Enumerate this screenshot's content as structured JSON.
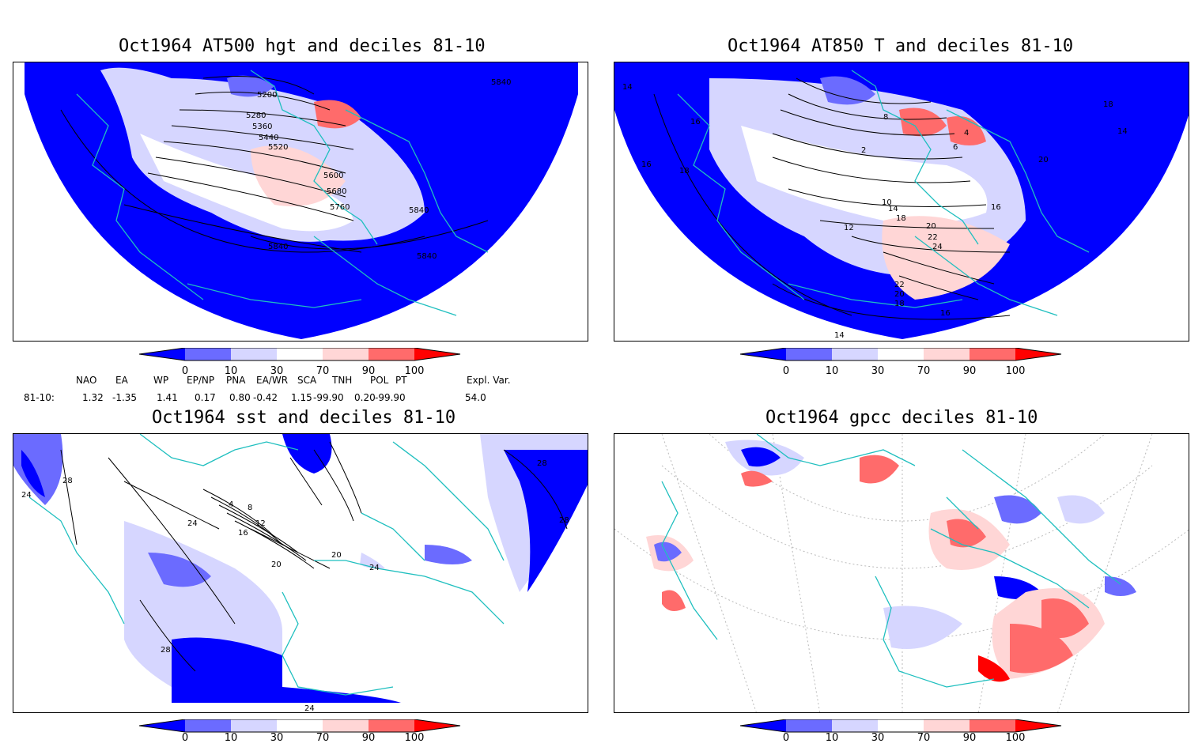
{
  "panels": [
    {
      "title": "Oct1964 AT500 hgt and deciles 81-10",
      "labels": [
        "5200",
        "5280",
        "5360",
        "5440",
        "5520",
        "5600",
        "5680",
        "5760",
        "5840",
        "5840",
        "5840",
        "5840"
      ]
    },
    {
      "title": "Oct1964 AT850 T and deciles 81-10",
      "labels": [
        "14",
        "16",
        "16",
        "18",
        "2",
        "4",
        "6",
        "8",
        "10",
        "12",
        "14",
        "16",
        "18",
        "20",
        "22",
        "24",
        "22",
        "20",
        "18",
        "16",
        "14",
        "20",
        "18",
        "14"
      ]
    },
    {
      "title": "Oct1964 sst and deciles 81-10",
      "labels": [
        "24",
        "28",
        "4",
        "8",
        "12",
        "16",
        "20",
        "24",
        "20",
        "28",
        "24",
        "28",
        "28",
        "24"
      ]
    },
    {
      "title": "Oct1964 gpcc deciles 81-10",
      "labels": []
    }
  ],
  "colorbar": {
    "ticks": [
      "0",
      "10",
      "30",
      "70",
      "90",
      "100"
    ]
  },
  "indices": {
    "headers": [
      "NAO",
      "EA",
      "WP",
      "EP/NP",
      "PNA",
      "EA/WR",
      "SCA",
      "TNH",
      "POL",
      "PT",
      "Expl. Var."
    ],
    "row_label": "81-10:",
    "values": [
      "1.32",
      "-1.35",
      "1.41",
      "0.17",
      "0.80",
      "-0.42",
      "1.15",
      "-99.90",
      "0.20",
      "-99.90",
      "54.0"
    ]
  },
  "colors": {
    "deep_blue": "#0000ff",
    "mid_blue": "#6b6bff",
    "light_blue": "#d6d6ff",
    "light_red": "#ffd6d6",
    "mid_red": "#ff6b6b",
    "deep_red": "#ff0000",
    "coast": "#1fbfbf"
  }
}
